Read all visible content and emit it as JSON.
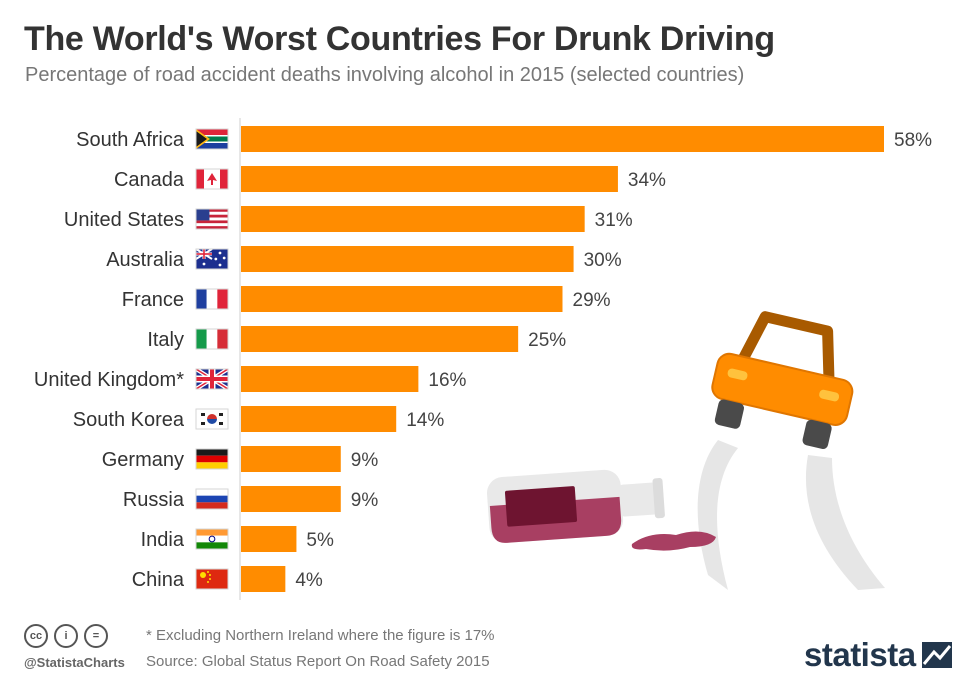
{
  "header": {
    "title": "The World's Worst Countries For Drunk Driving",
    "subtitle": "Percentage of road accident deaths involving alcohol in 2015 (selected countries)"
  },
  "chart_data": {
    "type": "bar",
    "orientation": "horizontal",
    "title": "The World's Worst Countries For Drunk Driving",
    "subtitle": "Percentage of road accident deaths involving alcohol in 2015 (selected countries)",
    "categories": [
      "South Africa",
      "Canada",
      "United States",
      "Australia",
      "France",
      "Italy",
      "United Kingdom*",
      "South Korea",
      "Germany",
      "Russia",
      "India",
      "China"
    ],
    "flags": [
      "za",
      "ca",
      "us",
      "au",
      "fr",
      "it",
      "gb",
      "kr",
      "de",
      "ru",
      "in",
      "cn"
    ],
    "values": [
      58,
      34,
      31,
      30,
      29,
      25,
      16,
      14,
      9,
      9,
      5,
      4
    ],
    "value_labels": [
      "58%",
      "34%",
      "31%",
      "30%",
      "29%",
      "25%",
      "16%",
      "14%",
      "9%",
      "9%",
      "5%",
      "4%"
    ],
    "unit": "%",
    "xlim": [
      0,
      58
    ],
    "xlabel": "",
    "ylabel": "",
    "grid": false,
    "bar_color": "#ff8c00"
  },
  "footer": {
    "license_icons": [
      "cc-icon",
      "by-icon",
      "nd-icon"
    ],
    "license_glyphs": [
      "cc",
      "i",
      "="
    ],
    "handle": "@StatistaCharts",
    "footnote": "* Excluding Northern Ireland where the figure is 17%",
    "source": "Source: Global Status Report On Road Safety 2015",
    "brand": "statista"
  },
  "colors": {
    "bar": "#ff8c00",
    "title": "#333333",
    "subtitle": "#777777",
    "brand": "#22364c"
  }
}
